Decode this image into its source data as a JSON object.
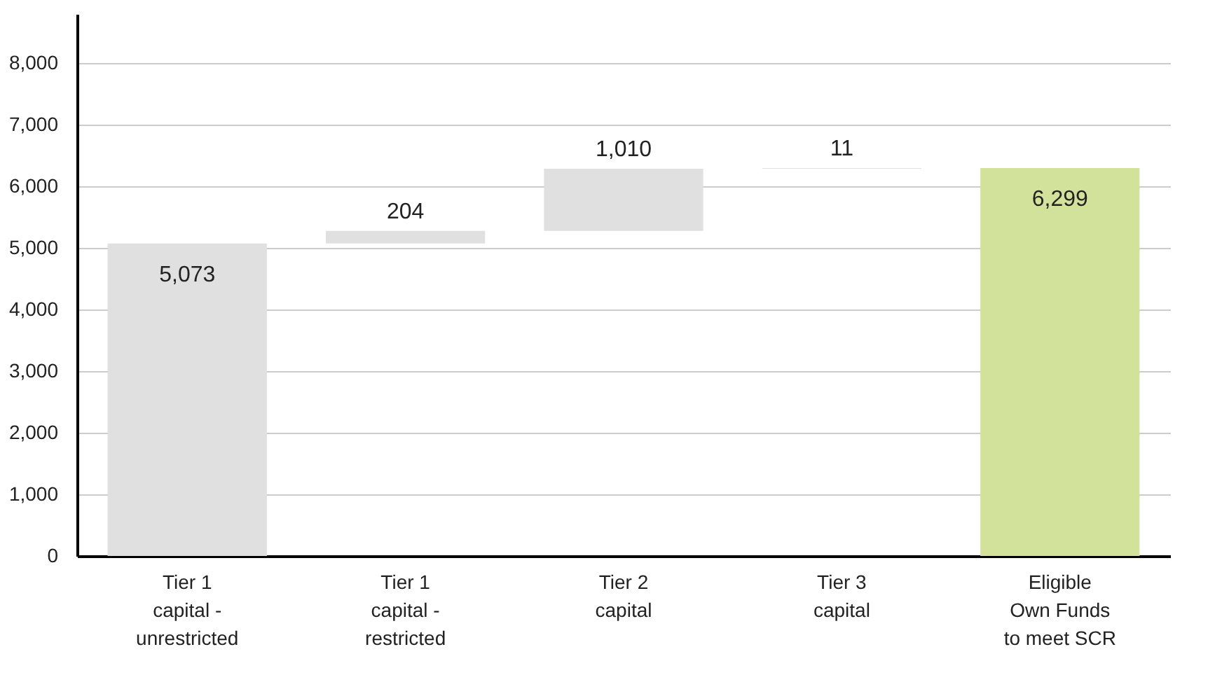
{
  "chart_data": {
    "type": "bar",
    "categories": [
      "Tier 1 capital - unrestricted",
      "Tier 1 capital - restricted",
      "Tier 2 capital",
      "Tier 3 capital",
      "Eligible Own Funds to meet SCR"
    ],
    "values": [
      5073,
      204,
      1010,
      11,
      6299
    ],
    "base": [
      0,
      5073,
      5277,
      6287,
      0
    ],
    "colors": [
      "#e0e0e0",
      "#e0e0e0",
      "#e0e0e0",
      "#e0e0e0",
      "#d2e29b"
    ],
    "value_labels": [
      "5,073",
      "204",
      "1,010",
      "11",
      "6,299"
    ],
    "ylim": [
      0,
      8800
    ],
    "yticks": [
      {
        "value": 0,
        "label": "0"
      },
      {
        "value": 1000,
        "label": "1,000"
      },
      {
        "value": 2000,
        "label": "2,000"
      },
      {
        "value": 3000,
        "label": "3,000"
      },
      {
        "value": 4000,
        "label": "4,000"
      },
      {
        "value": 5000,
        "label": "5,000"
      },
      {
        "value": 6000,
        "label": "6,000"
      },
      {
        "value": 7000,
        "label": "7,000"
      },
      {
        "value": 8000,
        "label": "8,000"
      }
    ],
    "grid": "y"
  }
}
